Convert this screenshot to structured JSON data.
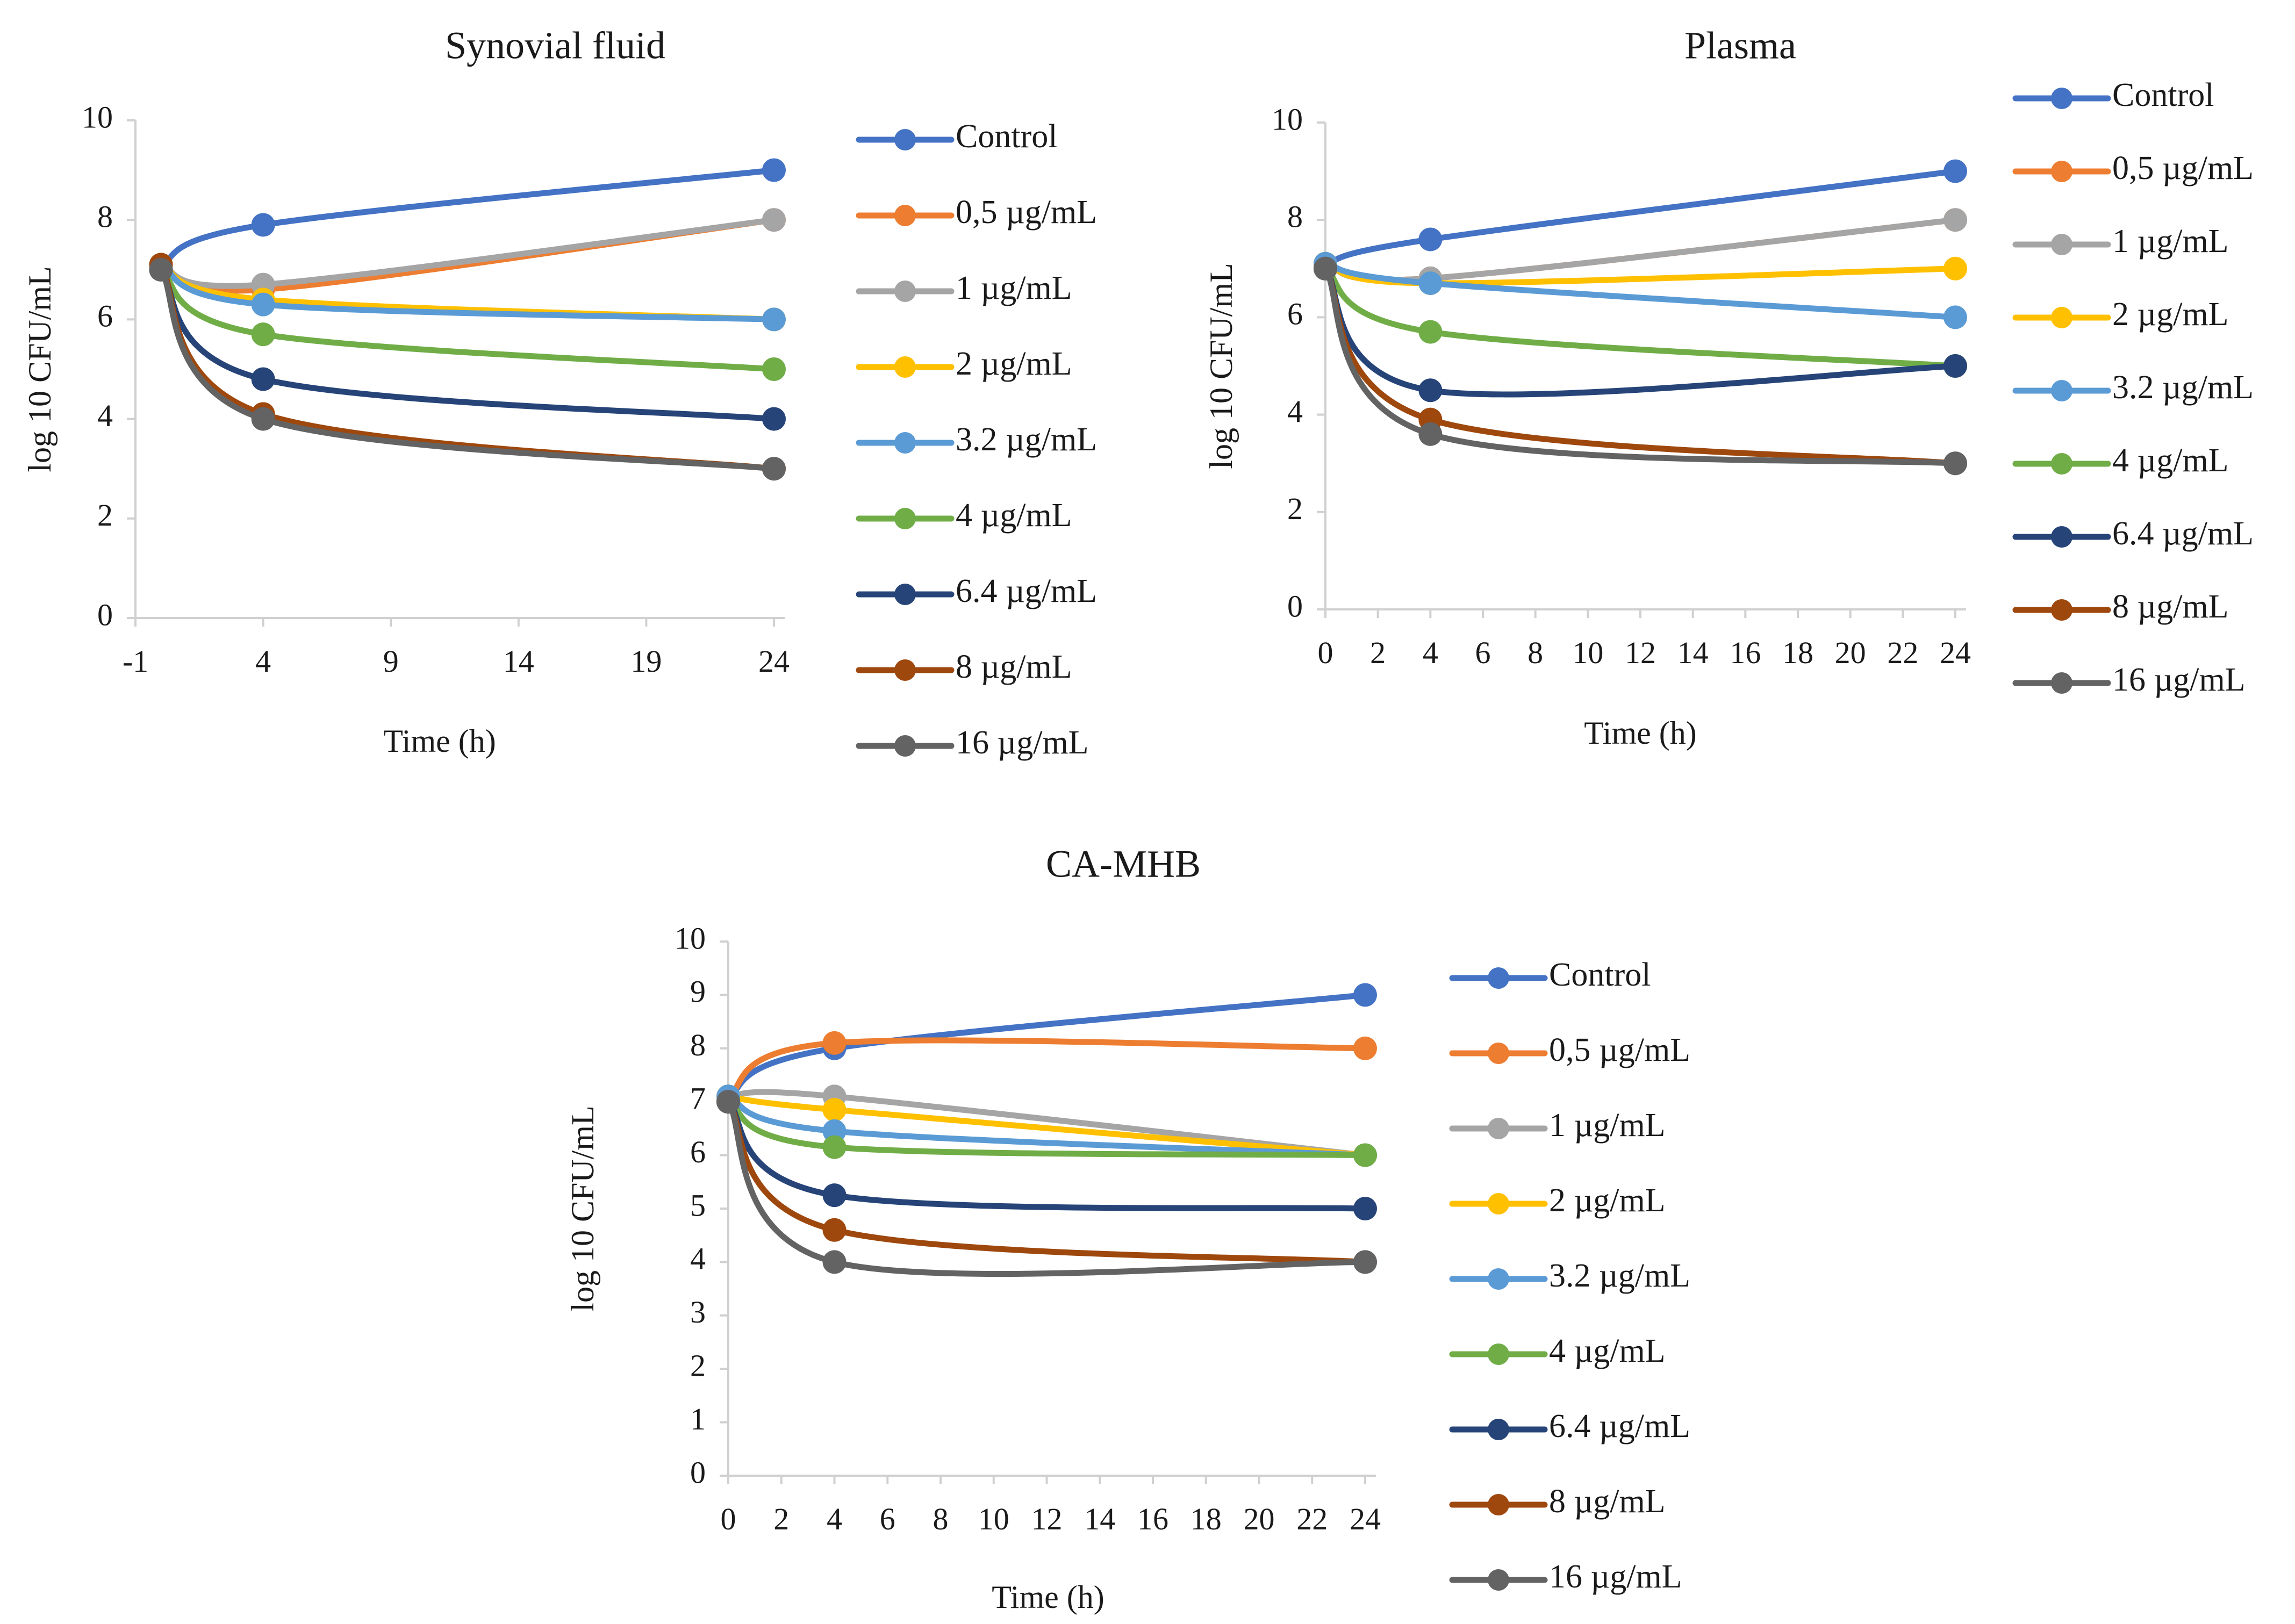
{
  "chart_data": [
    {
      "type": "line",
      "title": "Synovial fluid",
      "xlabel": "Time (h)",
      "ylabel": "log 10 CFU/mL",
      "xlim": [
        -1,
        24
      ],
      "ylim": [
        0,
        10
      ],
      "x_ticks": [
        "-1",
        "4",
        "9",
        "14",
        "19",
        "24"
      ],
      "y_ticks": [
        "0",
        "2",
        "4",
        "6",
        "8",
        "10"
      ],
      "x": [
        0,
        4,
        24
      ],
      "legend_position": "right",
      "series": [
        {
          "name": "Control",
          "color": "#4472C4",
          "values": [
            7.1,
            7.9,
            9.0
          ]
        },
        {
          "name": "0,5 µg/mL",
          "color": "#ED7D31",
          "values": [
            7.1,
            6.6,
            8.0
          ]
        },
        {
          "name": "1 µg/mL",
          "color": "#A5A5A5",
          "values": [
            7.1,
            6.7,
            8.0
          ]
        },
        {
          "name": "2 µg/mL",
          "color": "#FFC000",
          "values": [
            7.1,
            6.4,
            6.0
          ]
        },
        {
          "name": "3.2 µg/mL",
          "color": "#5B9BD5",
          "values": [
            7.1,
            6.3,
            6.0
          ]
        },
        {
          "name": "4 µg/mL",
          "color": "#70AD47",
          "values": [
            7.0,
            5.7,
            5.0
          ]
        },
        {
          "name": "6.4 µg/mL",
          "color": "#264478",
          "values": [
            7.0,
            4.8,
            4.0
          ]
        },
        {
          "name": "8 µg/mL",
          "color": "#9E480E",
          "values": [
            7.1,
            4.1,
            3.0
          ]
        },
        {
          "name": "16 µg/mL",
          "color": "#636363",
          "values": [
            7.0,
            4.0,
            3.0
          ]
        }
      ]
    },
    {
      "type": "line",
      "title": "Plasma",
      "xlabel": "Time (h)",
      "ylabel": "log 10 CFU/mL",
      "xlim": [
        0,
        24
      ],
      "ylim": [
        0,
        10
      ],
      "x_ticks": [
        "0",
        "2",
        "4",
        "6",
        "8",
        "10",
        "12",
        "14",
        "16",
        "18",
        "20",
        "22",
        "24"
      ],
      "y_ticks": [
        "0",
        "2",
        "4",
        "6",
        "8",
        "10"
      ],
      "x": [
        0,
        4,
        24
      ],
      "legend_position": "right",
      "series": [
        {
          "name": "Control",
          "color": "#4472C4",
          "values": [
            7.1,
            7.6,
            9.0
          ]
        },
        {
          "name": "0,5 µg/mL",
          "color": "#ED7D31",
          "values": [
            7.1,
            6.8,
            8.0
          ]
        },
        {
          "name": "1 µg/mL",
          "color": "#A5A5A5",
          "values": [
            7.1,
            6.8,
            8.0
          ]
        },
        {
          "name": "2 µg/mL",
          "color": "#FFC000",
          "values": [
            7.1,
            6.7,
            7.0
          ]
        },
        {
          "name": "3.2 µg/mL",
          "color": "#5B9BD5",
          "values": [
            7.1,
            6.7,
            6.0
          ]
        },
        {
          "name": "4 µg/mL",
          "color": "#70AD47",
          "values": [
            7.0,
            5.7,
            5.0
          ]
        },
        {
          "name": "6.4 µg/mL",
          "color": "#264478",
          "values": [
            7.0,
            4.5,
            5.0
          ]
        },
        {
          "name": "8 µg/mL",
          "color": "#9E480E",
          "values": [
            7.0,
            3.9,
            3.0
          ]
        },
        {
          "name": "16 µg/mL",
          "color": "#636363",
          "values": [
            7.0,
            3.6,
            3.0
          ]
        }
      ]
    },
    {
      "type": "line",
      "title": "CA-MHB",
      "xlabel": "Time (h)",
      "ylabel": "log 10 CFU/mL",
      "xlim": [
        0,
        24
      ],
      "ylim": [
        0,
        10
      ],
      "x_ticks": [
        "0",
        "2",
        "4",
        "6",
        "8",
        "10",
        "12",
        "14",
        "16",
        "18",
        "20",
        "22",
        "24"
      ],
      "y_ticks": [
        "0",
        "1",
        "2",
        "3",
        "4",
        "5",
        "6",
        "7",
        "8",
        "9",
        "10"
      ],
      "x": [
        0,
        4,
        24
      ],
      "legend_position": "right",
      "series": [
        {
          "name": "Control",
          "color": "#4472C4",
          "values": [
            7.1,
            8.0,
            9.0
          ]
        },
        {
          "name": "0,5 µg/mL",
          "color": "#ED7D31",
          "values": [
            7.1,
            8.1,
            8.0
          ]
        },
        {
          "name": "1 µg/mL",
          "color": "#A5A5A5",
          "values": [
            7.1,
            7.1,
            6.0
          ]
        },
        {
          "name": "2 µg/mL",
          "color": "#FFC000",
          "values": [
            7.1,
            6.85,
            6.0
          ]
        },
        {
          "name": "3.2 µg/mL",
          "color": "#5B9BD5",
          "values": [
            7.1,
            6.45,
            6.0
          ]
        },
        {
          "name": "4 µg/mL",
          "color": "#70AD47",
          "values": [
            7.0,
            6.15,
            6.0
          ]
        },
        {
          "name": "6.4 µg/mL",
          "color": "#264478",
          "values": [
            7.0,
            5.25,
            5.0
          ]
        },
        {
          "name": "8 µg/mL",
          "color": "#9E480E",
          "values": [
            7.0,
            4.6,
            4.0
          ]
        },
        {
          "name": "16 µg/mL",
          "color": "#636363",
          "values": [
            7.0,
            4.0,
            4.0
          ]
        }
      ]
    }
  ]
}
